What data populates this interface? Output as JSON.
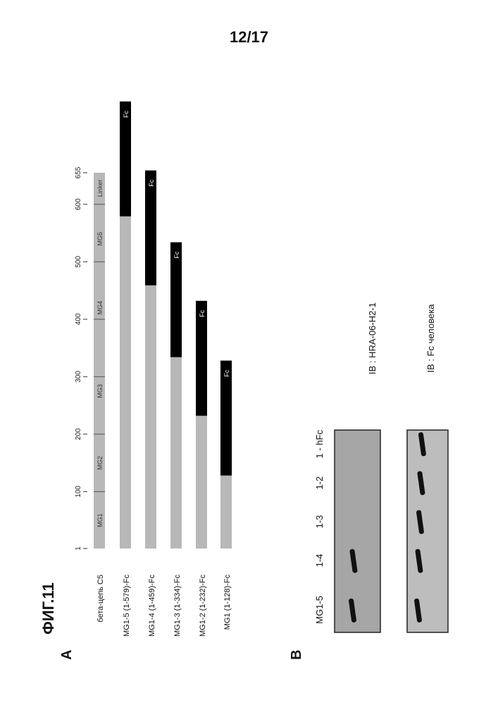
{
  "page_number": "12/17",
  "figure_title": "ФИГ.11",
  "panel_a": {
    "label": "A",
    "axis_ticks": [
      "1",
      "100",
      "200",
      "300",
      "400",
      "500",
      "600",
      "655"
    ],
    "domains": [
      "MG1",
      "MG2",
      "MG3",
      "MG4",
      "MG5",
      "Linker"
    ],
    "constructs": [
      {
        "name": "бета-цепь C5",
        "end": 655,
        "fc": false
      },
      {
        "name": "MG1-5 (1-579)-Fc",
        "end": 579,
        "fc": true,
        "fc_label": "Fc"
      },
      {
        "name": "MG1-4 (1-459)-Fc",
        "end": 459,
        "fc": true,
        "fc_label": "Fc"
      },
      {
        "name": "MG1-3 (1-334)-Fc",
        "end": 334,
        "fc": true,
        "fc_label": "Fc"
      },
      {
        "name": "MG1-2 (1-232)-Fc",
        "end": 232,
        "fc": true,
        "fc_label": "Fc"
      },
      {
        "name": "MG1 (1-128)-Fc",
        "end": 128,
        "fc": true,
        "fc_label": "Fc"
      }
    ]
  },
  "panel_b": {
    "label": "B",
    "lanes": [
      "MG1-5",
      "1-4",
      "1-3",
      "1-2",
      "1 - hFc"
    ],
    "blots": [
      {
        "label": "IB : HRA-06-H2-1",
        "bands": [
          0,
          1
        ]
      },
      {
        "label": "IB : Fc человека",
        "bands": [
          0,
          1,
          2,
          3,
          4
        ]
      }
    ]
  },
  "colors": {
    "domain_bar": "#b8b8b8",
    "fc_bar": "#000000",
    "blot1_bg": "#a6a6a6",
    "blot2_bg": "#bdbdbd",
    "band": "#111111"
  }
}
